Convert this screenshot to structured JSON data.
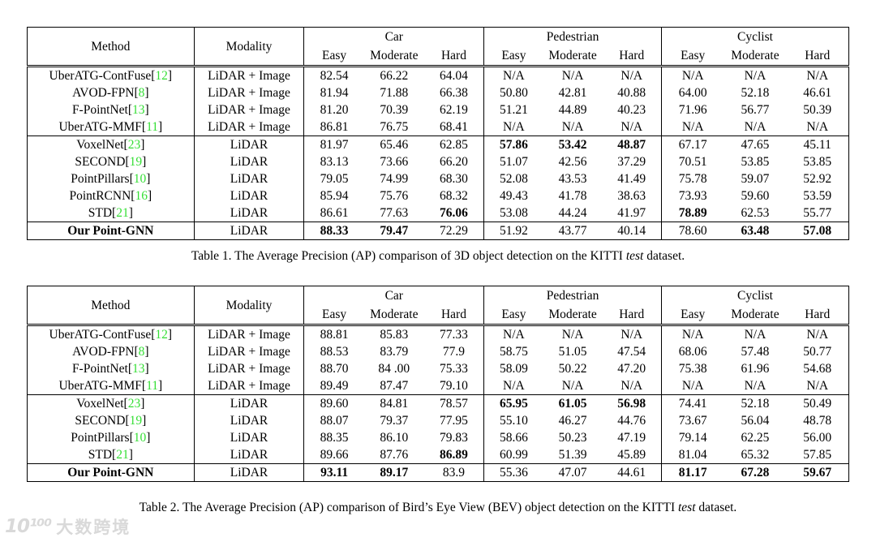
{
  "header": {
    "method": "Method",
    "modality": "Modality",
    "groups": [
      "Car",
      "Pedestrian",
      "Cyclist"
    ],
    "sub": [
      "Easy",
      "Moderate",
      "Hard"
    ]
  },
  "tables": [
    {
      "name": "table-1-ap-3d-detection",
      "caption": [
        {
          "t": "Table 1. The Average Precision (AP) comparison of 3D object detection on the KITTI "
        },
        {
          "t": "test",
          "i": true
        },
        {
          "t": " dataset."
        }
      ],
      "groups": [
        {
          "rows": [
            {
              "method": "UberATG-ContFuse",
              "ref": "12",
              "modality": "LiDAR + Image",
              "values": [
                "82.54",
                "66.22",
                "64.04",
                "N/A",
                "N/A",
                "N/A",
                "N/A",
                "N/A",
                "N/A"
              ],
              "bold": []
            },
            {
              "method": "AVOD-FPN",
              "ref": "8",
              "modality": "LiDAR + Image",
              "values": [
                "81.94",
                "71.88",
                "66.38",
                "50.80",
                "42.81",
                "40.88",
                "64.00",
                "52.18",
                "46.61"
              ],
              "bold": []
            },
            {
              "method": "F-PointNet",
              "ref": "13",
              "modality": "LiDAR + Image",
              "values": [
                "81.20",
                "70.39",
                "62.19",
                "51.21",
                "44.89",
                "40.23",
                "71.96",
                "56.77",
                "50.39"
              ],
              "bold": []
            },
            {
              "method": "UberATG-MMF",
              "ref": "11",
              "modality": "LiDAR + Image",
              "values": [
                "86.81",
                "76.75",
                "68.41",
                "N/A",
                "N/A",
                "N/A",
                "N/A",
                "N/A",
                "N/A"
              ],
              "bold": []
            }
          ]
        },
        {
          "rows": [
            {
              "method": "VoxelNet",
              "ref": "23",
              "modality": "LiDAR",
              "values": [
                "81.97",
                "65.46",
                "62.85",
                "57.86",
                "53.42",
                "48.87",
                "67.17",
                "47.65",
                "45.11"
              ],
              "bold": [
                3,
                4,
                5
              ]
            },
            {
              "method": "SECOND",
              "ref": "19",
              "modality": "LiDAR",
              "values": [
                "83.13",
                "73.66",
                "66.20",
                "51.07",
                "42.56",
                "37.29",
                "70.51",
                "53.85",
                "53.85"
              ],
              "bold": []
            },
            {
              "method": "PointPillars",
              "ref": "10",
              "modality": "LiDAR",
              "values": [
                "79.05",
                "74.99",
                "68.30",
                "52.08",
                "43.53",
                "41.49",
                "75.78",
                "59.07",
                "52.92"
              ],
              "bold": []
            },
            {
              "method": "PointRCNN",
              "ref": "16",
              "modality": "LiDAR",
              "values": [
                "85.94",
                "75.76",
                "68.32",
                "49.43",
                "41.78",
                "38.63",
                "73.93",
                "59.60",
                "53.59"
              ],
              "bold": []
            },
            {
              "method": "STD",
              "ref": "21",
              "modality": "LiDAR",
              "values": [
                "86.61",
                "77.63",
                "76.06",
                "53.08",
                "44.24",
                "41.97",
                "78.89",
                "62.53",
                "55.77"
              ],
              "bold": [
                2,
                6
              ]
            }
          ]
        },
        {
          "rows": [
            {
              "method": "Our Point-GNN",
              "ref": null,
              "bold_method": true,
              "modality": "LiDAR",
              "values": [
                "88.33",
                "79.47",
                "72.29",
                "51.92",
                "43.77",
                "40.14",
                "78.60",
                "63.48",
                "57.08"
              ],
              "bold": [
                0,
                1,
                7,
                8
              ]
            }
          ]
        }
      ]
    },
    {
      "name": "table-2-ap-bev-detection",
      "caption": [
        {
          "t": "Table 2. The Average Precision (AP) comparison of Bird’s Eye View (BEV) object detection on the KITTI "
        },
        {
          "t": "test",
          "i": true
        },
        {
          "t": " dataset."
        }
      ],
      "groups": [
        {
          "rows": [
            {
              "method": "UberATG-ContFuse",
              "ref": "12",
              "modality": "LiDAR + Image",
              "values": [
                "88.81",
                "85.83",
                "77.33",
                "N/A",
                "N/A",
                "N/A",
                "N/A",
                "N/A",
                "N/A"
              ],
              "bold": []
            },
            {
              "method": "AVOD-FPN",
              "ref": "8",
              "modality": "LiDAR + Image",
              "values": [
                "88.53",
                "83.79",
                "77.9",
                "58.75",
                "51.05",
                "47.54",
                "68.06",
                "57.48",
                "50.77"
              ],
              "bold": []
            },
            {
              "method": "F-PointNet",
              "ref": "13",
              "modality": "LiDAR + Image",
              "values": [
                "88.70",
                "84 .00",
                "75.33",
                "58.09",
                "50.22",
                "47.20",
                "75.38",
                "61.96",
                "54.68"
              ],
              "bold": []
            },
            {
              "method": "UberATG-MMF",
              "ref": "11",
              "modality": "LiDAR + Image",
              "values": [
                "89.49",
                "87.47",
                "79.10",
                "N/A",
                "N/A",
                "N/A",
                "N/A",
                "N/A",
                "N/A"
              ],
              "bold": []
            }
          ]
        },
        {
          "rows": [
            {
              "method": "VoxelNet",
              "ref": "23",
              "modality": "LiDAR",
              "values": [
                "89.60",
                "84.81",
                "78.57",
                "65.95",
                "61.05",
                "56.98",
                "74.41",
                "52.18",
                "50.49"
              ],
              "bold": [
                3,
                4,
                5
              ]
            },
            {
              "method": "SECOND",
              "ref": "19",
              "modality": "LiDAR",
              "values": [
                "88.07",
                "79.37",
                "77.95",
                "55.10",
                "46.27",
                "44.76",
                "73.67",
                "56.04",
                "48.78"
              ],
              "bold": []
            },
            {
              "method": "PointPillars",
              "ref": "10",
              "modality": "LiDAR",
              "values": [
                "88.35",
                "86.10",
                "79.83",
                "58.66",
                "50.23",
                "47.19",
                "79.14",
                "62.25",
                "56.00"
              ],
              "bold": []
            },
            {
              "method": "STD",
              "ref": "21",
              "modality": "LiDAR",
              "values": [
                "89.66",
                "87.76",
                "86.89",
                "60.99",
                "51.39",
                "45.89",
                "81.04",
                "65.32",
                "57.85"
              ],
              "bold": [
                2
              ]
            }
          ]
        },
        {
          "rows": [
            {
              "method": "Our Point-GNN",
              "ref": null,
              "bold_method": true,
              "modality": "LiDAR",
              "values": [
                "93.11",
                "89.17",
                "83.9",
                "55.36",
                "47.07",
                "44.61",
                "81.17",
                "67.28",
                "59.67"
              ],
              "bold": [
                0,
                1,
                6,
                7,
                8
              ]
            }
          ]
        }
      ]
    }
  ],
  "watermark": {
    "logo": "10¹⁰⁰",
    "text": "大数跨境"
  },
  "colors": {
    "ref_green": "#35df35",
    "watermark_gray": "#d9d9d9"
  }
}
